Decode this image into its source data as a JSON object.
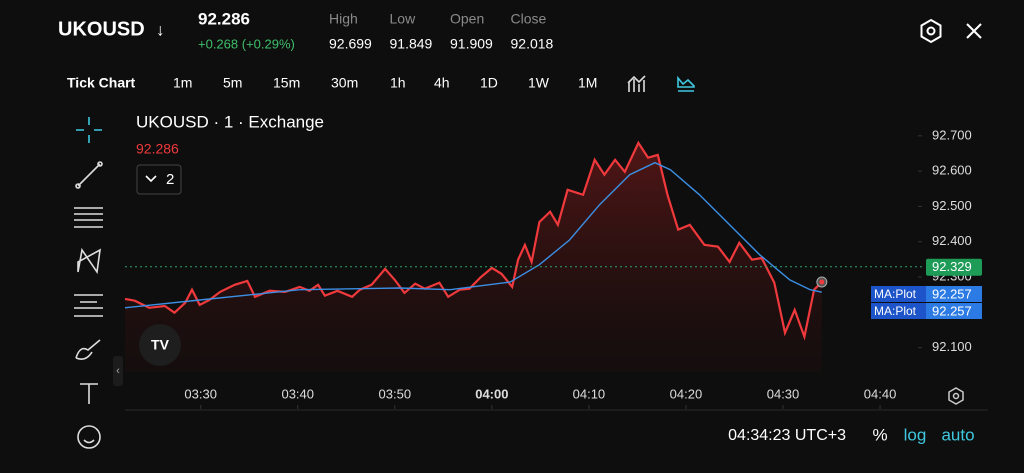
{
  "header": {
    "symbol": "UKOUSD",
    "direction": "↓",
    "price": "92.286",
    "change": "+0.268 (+0.29%)",
    "stats": [
      {
        "label": "High",
        "value": "92.699"
      },
      {
        "label": "Low",
        "value": "91.849"
      },
      {
        "label": "Open",
        "value": "91.909"
      },
      {
        "label": "Close",
        "value": "92.018"
      }
    ]
  },
  "timeframes": [
    "Tick Chart",
    "1m",
    "5m",
    "15m",
    "30m",
    "1h",
    "4h",
    "1D",
    "1W",
    "1M"
  ],
  "chart_data": {
    "type": "line",
    "title": "UKOUSD · 1 · Exchange",
    "last_value": "92.286",
    "indicator_count": "2",
    "xlim": [
      202.2,
      283.6
    ],
    "ylim": [
      92.031,
      92.759
    ],
    "xticks": [
      {
        "value": 210,
        "label": "03:30"
      },
      {
        "value": 220,
        "label": "03:40"
      },
      {
        "value": 230,
        "label": "03:50"
      },
      {
        "value": 240,
        "label": "04:00"
      },
      {
        "value": 250,
        "label": "04:10"
      },
      {
        "value": 260,
        "label": "04:20"
      },
      {
        "value": 270,
        "label": "04:30"
      },
      {
        "value": 280,
        "label": "04:40"
      }
    ],
    "yticks": [
      {
        "value": 92.1,
        "label": "92.100"
      },
      {
        "value": 92.3,
        "label": "92.300"
      },
      {
        "value": 92.4,
        "label": "92.400"
      },
      {
        "value": 92.5,
        "label": "92.500"
      },
      {
        "value": 92.6,
        "label": "92.600"
      },
      {
        "value": 92.7,
        "label": "92.700"
      }
    ],
    "series": [
      {
        "name": "UKOUSD",
        "color": "#f0393c",
        "x": [
          202.2,
          203.2,
          204.7,
          206.3,
          207.3,
          208.4,
          209.1,
          209.9,
          210.9,
          212.0,
          213.5,
          214.8,
          215.6,
          217.1,
          218.7,
          220.2,
          221.2,
          222.1,
          222.8,
          224.1,
          225.6,
          226.4,
          227.6,
          229.0,
          230.0,
          231.0,
          232.1,
          233.1,
          234.6,
          235.5,
          236.7,
          237.7,
          238.8,
          240.0,
          241.0,
          242.1,
          242.7,
          243.4,
          244.1,
          244.9,
          246.0,
          246.8,
          247.8,
          249.4,
          250.6,
          251.6,
          252.7,
          253.7,
          255.1,
          256.1,
          257.1,
          258.1,
          259.2,
          260.4,
          261.9,
          263.3,
          264.5,
          265.5,
          266.8,
          267.8,
          269.1,
          270.2,
          271.2,
          272.2,
          273.2,
          274.0
        ],
        "values": [
          92.238,
          92.233,
          92.213,
          92.218,
          92.199,
          92.227,
          92.264,
          92.221,
          92.235,
          92.258,
          92.278,
          92.289,
          92.244,
          92.261,
          92.258,
          92.272,
          92.261,
          92.278,
          92.247,
          92.261,
          92.244,
          92.264,
          92.278,
          92.323,
          92.292,
          92.255,
          92.281,
          92.267,
          92.284,
          92.244,
          92.264,
          92.267,
          92.298,
          92.326,
          92.309,
          92.272,
          92.349,
          92.391,
          92.343,
          92.456,
          92.485,
          92.448,
          92.547,
          92.533,
          92.632,
          92.59,
          92.632,
          92.598,
          92.68,
          92.638,
          92.646,
          92.533,
          92.434,
          92.448,
          92.391,
          92.386,
          92.343,
          92.397,
          92.349,
          92.354,
          92.284,
          92.142,
          92.207,
          92.131,
          92.264,
          92.286
        ]
      },
      {
        "name": "MA:Plot",
        "color": "#3b8fe4",
        "x": [
          202.2,
          209.9,
          220.2,
          230.5,
          235.7,
          241.9,
          244.9,
          248.0,
          251.1,
          254.2,
          256.8,
          258.4,
          261.4,
          264.5,
          267.6,
          270.7,
          272.8,
          274.0
        ],
        "values": [
          92.213,
          92.235,
          92.264,
          92.269,
          92.264,
          92.286,
          92.335,
          92.405,
          92.505,
          92.59,
          92.624,
          92.604,
          92.533,
          92.448,
          92.363,
          92.292,
          92.264,
          92.257
        ]
      }
    ],
    "price_line": {
      "value": 92.329,
      "label": "92.329"
    },
    "ma_labels": [
      {
        "name": "MA:Plot",
        "value": "92.257"
      },
      {
        "name": "MA:Plot",
        "value": "92.257"
      }
    ]
  },
  "footer": {
    "time": "04:34:23 UTC+3",
    "percent": "%",
    "log": "log",
    "auto": "auto"
  }
}
